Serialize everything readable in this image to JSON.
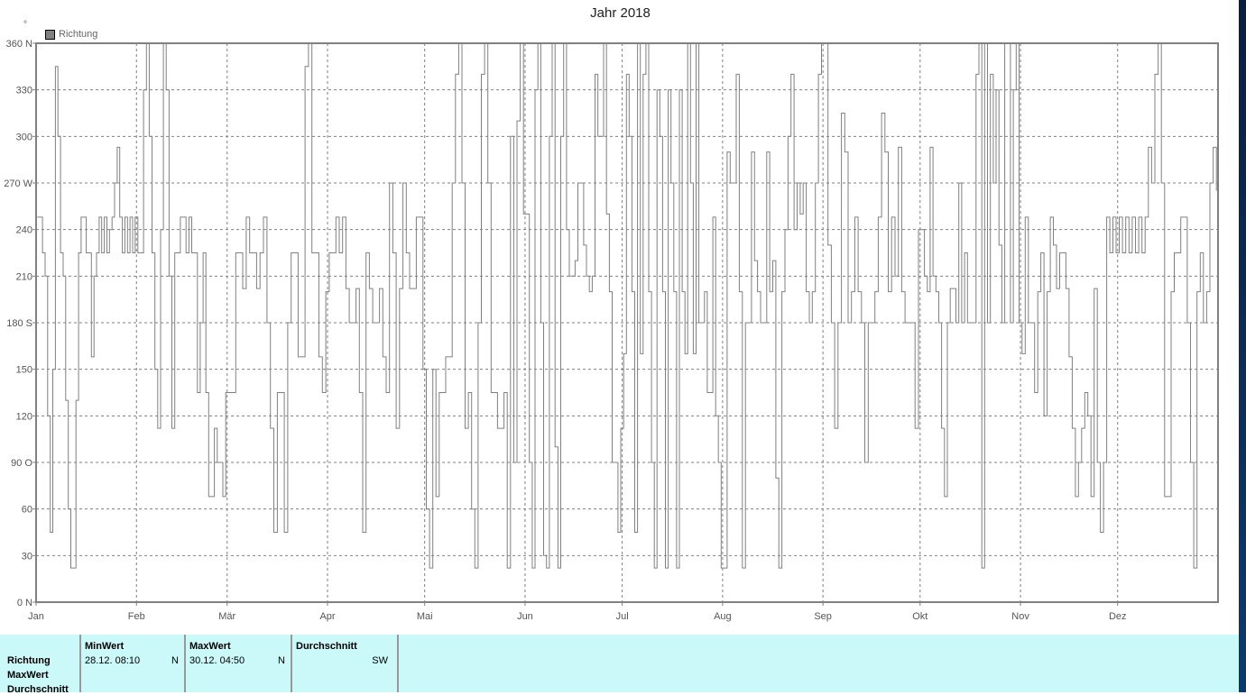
{
  "chart_data": {
    "type": "line",
    "title": "Jahr 2018",
    "y_unit_symbol": "°",
    "legend": {
      "entries": [
        "Richtung"
      ],
      "placement": "top-left"
    },
    "series_color": "#808080",
    "grid": true,
    "ylim": [
      0,
      360
    ],
    "y_ticks": [
      {
        "value": 0,
        "label": "0 N"
      },
      {
        "value": 30,
        "label": "30"
      },
      {
        "value": 60,
        "label": "60"
      },
      {
        "value": 90,
        "label": "90  O"
      },
      {
        "value": 120,
        "label": "120"
      },
      {
        "value": 150,
        "label": "150"
      },
      {
        "value": 180,
        "label": "180 S"
      },
      {
        "value": 210,
        "label": "210"
      },
      {
        "value": 240,
        "label": "240"
      },
      {
        "value": 270,
        "label": "270 W"
      },
      {
        "value": 300,
        "label": "300"
      },
      {
        "value": 330,
        "label": "330"
      },
      {
        "value": 360,
        "label": "360 N"
      }
    ],
    "x_ticks": [
      "Jan",
      "Feb",
      "Mär",
      "Apr",
      "Mai",
      "Jun",
      "Jul",
      "Aug",
      "Sep",
      "Okt",
      "Nov",
      "Dez"
    ],
    "month_days": [
      31,
      28,
      31,
      30,
      31,
      30,
      31,
      31,
      30,
      31,
      30,
      31
    ],
    "series": [
      {
        "name": "Richtung",
        "values_by_month": [
          [
            248,
            248,
            225,
            210,
            120,
            45,
            150,
            345,
            300,
            225,
            210,
            130,
            60,
            22,
            22,
            130,
            225,
            248,
            248,
            225,
            225,
            158,
            210,
            225,
            248,
            225,
            248,
            225,
            240,
            248,
            270,
            293,
            248,
            225,
            248,
            225,
            248,
            225,
            248
          ],
          [
            225,
            225,
            330,
            360,
            300,
            225,
            150,
            112,
            240,
            360,
            330,
            210,
            112,
            225,
            225,
            248,
            248,
            225,
            248,
            225,
            225,
            135,
            180,
            225,
            135,
            68,
            68,
            112,
            90,
            90,
            68,
            135
          ],
          [
            135,
            135,
            225,
            225,
            202,
            248,
            225,
            225,
            202,
            225,
            248,
            180,
            112,
            45,
            135,
            135,
            45,
            180,
            225,
            225,
            158,
            158,
            345,
            360,
            225,
            225,
            158,
            135,
            200
          ],
          [
            225,
            225,
            248,
            225,
            248,
            202,
            180,
            180,
            202,
            135,
            45,
            225,
            202,
            180,
            180,
            202,
            158,
            135,
            270,
            225,
            112,
            202,
            270,
            225,
            202,
            202,
            248,
            248,
            150
          ],
          [
            60,
            22,
            150,
            68,
            135,
            135,
            158,
            158,
            270,
            340,
            360,
            270,
            112,
            135,
            60,
            22,
            180,
            340,
            360,
            270,
            135,
            135,
            112,
            112,
            135,
            22,
            300,
            90,
            310,
            360,
            250
          ],
          [
            250,
            90,
            22,
            330,
            360,
            180,
            30,
            22,
            300,
            360,
            100,
            22,
            300,
            360,
            240,
            210,
            210,
            220,
            270,
            270,
            230,
            210,
            200,
            210,
            340,
            300,
            300,
            360,
            250,
            200,
            90,
            90,
            45,
            112
          ],
          [
            160,
            340,
            300,
            200,
            45,
            360,
            160,
            340,
            360,
            200,
            90,
            22,
            330,
            300,
            200,
            22,
            330,
            270,
            200,
            22,
            330,
            200,
            160,
            360,
            270,
            160,
            360,
            180,
            180,
            200,
            135,
            135,
            248,
            120,
            90,
            22
          ],
          [
            22,
            290,
            270,
            270,
            340,
            200,
            22,
            180,
            180,
            290,
            220,
            200,
            180,
            180,
            290,
            200,
            220,
            80,
            22,
            200,
            240,
            300,
            340,
            240,
            270,
            250,
            270,
            200,
            180,
            200,
            270,
            340,
            360
          ],
          [
            360,
            230,
            180,
            112,
            180,
            315,
            290,
            180,
            200,
            248,
            200,
            180,
            90,
            180,
            180,
            200,
            248,
            315,
            290,
            200,
            248,
            210,
            293,
            200,
            180,
            180,
            180,
            112,
            240
          ],
          [
            240,
            210,
            200,
            293,
            210,
            200,
            180,
            112,
            68,
            180,
            202,
            202,
            180,
            270,
            180,
            225,
            180,
            180,
            180,
            340,
            360,
            22,
            360,
            180,
            340,
            270,
            330,
            230,
            180,
            360,
            360,
            180,
            330,
            360,
            180
          ],
          [
            160,
            248,
            180,
            180,
            135,
            200,
            225,
            120,
            200,
            248,
            230,
            202,
            225,
            225,
            202,
            158,
            112,
            68,
            90,
            112,
            135,
            120,
            68,
            202,
            90,
            45,
            90,
            248,
            225,
            248,
            225
          ],
          [
            248,
            225,
            248,
            225,
            248,
            225,
            248,
            225,
            248,
            293,
            270,
            340,
            360,
            270,
            68,
            68,
            200,
            225,
            225,
            248,
            248,
            180,
            90,
            22,
            200,
            225,
            180,
            200,
            270,
            293,
            265
          ]
        ]
      }
    ]
  },
  "table": {
    "row_labels": [
      "Richtung",
      "MaxWert",
      "Durchschnitt"
    ],
    "columns": [
      {
        "header": "MinWert",
        "value": "28.12.  08:10",
        "dir": "N"
      },
      {
        "header": "MaxWert",
        "value": "30.12.  04:50",
        "dir": "N"
      },
      {
        "header": "Durchschnitt",
        "value": "",
        "dir": "SW"
      }
    ]
  }
}
